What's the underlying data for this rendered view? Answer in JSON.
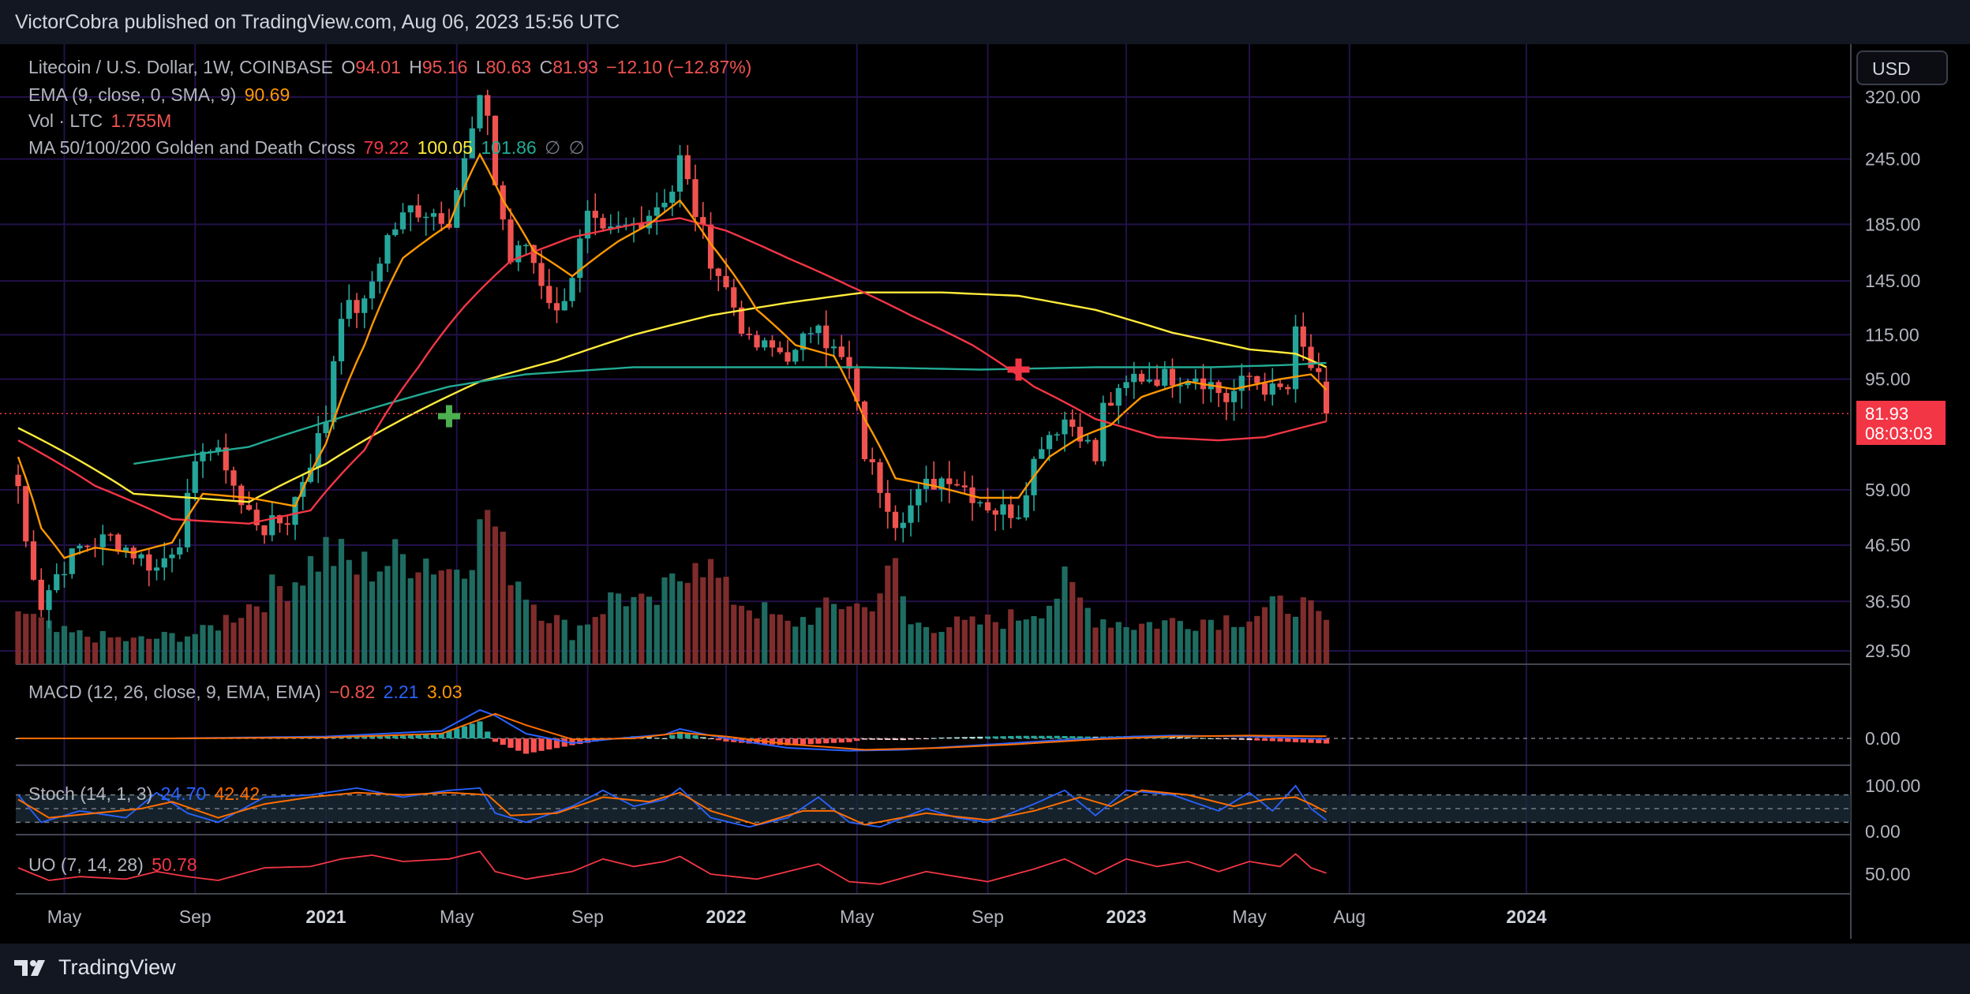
{
  "header": {
    "publisher_line": "VictorCobra published on TradingView.com, Aug 06, 2023 15:56 UTC"
  },
  "footer": {
    "logo_text": "TradingView"
  },
  "currency_button": "USD",
  "colors": {
    "bull": "#26a69a",
    "bear": "#ef5350",
    "ema": "#ff9800",
    "ma50": "#f23645",
    "ma100": "#22ab94",
    "ma200": "#ffeb3b",
    "macd": "#2962ff",
    "signal": "#ff6d00",
    "stoch_k": "#2962ff",
    "stoch_d": "#ff6d00",
    "uo": "#f23645",
    "grid": "#22114a",
    "axis_text": "#b2b5be"
  },
  "legend": {
    "main": {
      "title": "Litecoin / U.S. Dollar, 1W, COINBASE",
      "o_label": "O",
      "o_val": "94.01",
      "h_label": "H",
      "h_val": "95.16",
      "l_label": "L",
      "l_val": "80.63",
      "c_label": "C",
      "c_val": "81.93",
      "change": "−12.10 (−12.87%)"
    },
    "ema": {
      "title": "EMA (9, close, 0, SMA, 9)",
      "value": "90.69"
    },
    "vol": {
      "title": "Vol · LTC",
      "value": "1.755M"
    },
    "ma": {
      "title": "MA 50/100/200 Golden and Death Cross",
      "v1": "79.22",
      "v2": "100.05",
      "v3": "101.86",
      "na1": "∅",
      "na2": "∅"
    },
    "macd": {
      "title": "MACD (12, 26, close, 9, EMA, EMA)",
      "v1": "−0.82",
      "v2": "2.21",
      "v3": "3.03"
    },
    "stoch": {
      "title": "Stoch (14, 1, 3)",
      "v1": "24.70",
      "v2": "42.42"
    },
    "uo": {
      "title": "UO (7, 14, 28)",
      "v1": "50.78"
    }
  },
  "price_tag": {
    "price": "81.93",
    "countdown": "08:03:03"
  },
  "chart_data": {
    "type": "candlestick",
    "symbol": "LTCUSD",
    "interval": "1W",
    "price_axis": {
      "scale": "log",
      "ticks": [
        "320.00",
        "245.00",
        "185.00",
        "145.00",
        "115.00",
        "95.00",
        "59.00",
        "46.50",
        "36.50",
        "29.50"
      ],
      "tick_values": [
        320,
        245,
        185,
        145,
        115,
        95,
        59,
        46.5,
        36.5,
        29.5
      ]
    },
    "macd_axis_ticks": [
      "0.00"
    ],
    "stoch_axis_ticks": [
      "100.00",
      "0.00"
    ],
    "uo_axis_ticks": [
      "50.00"
    ],
    "time_axis": {
      "labels": [
        "May",
        "Sep",
        "2021",
        "May",
        "Sep",
        "2022",
        "May",
        "Sep",
        "2023",
        "May",
        "Aug",
        "2024"
      ],
      "bold": [
        false,
        false,
        true,
        false,
        false,
        true,
        false,
        false,
        true,
        false,
        false,
        true
      ],
      "weeks_from_first_bar": [
        6,
        23,
        40,
        57,
        74,
        92,
        109,
        126,
        144,
        160,
        173,
        196
      ]
    },
    "last_close": 81.93,
    "markers": [
      {
        "type": "golden-cross",
        "week": 56,
        "price": 81
      },
      {
        "type": "death-cross",
        "week": 130,
        "price": 99
      }
    ],
    "close_anchors": [
      [
        0,
        60
      ],
      [
        1,
        47
      ],
      [
        3,
        36
      ],
      [
        5,
        41
      ],
      [
        8,
        46
      ],
      [
        12,
        48
      ],
      [
        15,
        45
      ],
      [
        18,
        42
      ],
      [
        21,
        48
      ],
      [
        24,
        72
      ],
      [
        27,
        66
      ],
      [
        29,
        55
      ],
      [
        32,
        50
      ],
      [
        35,
        52
      ],
      [
        38,
        67
      ],
      [
        40,
        80
      ],
      [
        42,
        128
      ],
      [
        45,
        130
      ],
      [
        48,
        175
      ],
      [
        51,
        198
      ],
      [
        54,
        195
      ],
      [
        56,
        190
      ],
      [
        58,
        242
      ],
      [
        60,
        310
      ],
      [
        61,
        300
      ],
      [
        62,
        220
      ],
      [
        64,
        158
      ],
      [
        66,
        170
      ],
      [
        68,
        145
      ],
      [
        70,
        125
      ],
      [
        72,
        150
      ],
      [
        74,
        190
      ],
      [
        76,
        175
      ],
      [
        78,
        180
      ],
      [
        80,
        185
      ],
      [
        82,
        195
      ],
      [
        85,
        215
      ],
      [
        86,
        245
      ],
      [
        88,
        195
      ],
      [
        90,
        160
      ],
      [
        93,
        130
      ],
      [
        95,
        110
      ],
      [
        98,
        108
      ],
      [
        101,
        105
      ],
      [
        104,
        125
      ],
      [
        105,
        112
      ],
      [
        108,
        98
      ],
      [
        110,
        69
      ],
      [
        112,
        60
      ],
      [
        114,
        52
      ],
      [
        116,
        55
      ],
      [
        118,
        60
      ],
      [
        121,
        63
      ],
      [
        124,
        58
      ],
      [
        127,
        54
      ],
      [
        130,
        54
      ],
      [
        133,
        73
      ],
      [
        136,
        80
      ],
      [
        138,
        76
      ],
      [
        140,
        67
      ],
      [
        141,
        84
      ],
      [
        143,
        88
      ],
      [
        145,
        96
      ],
      [
        147,
        96
      ],
      [
        150,
        96
      ],
      [
        153,
        97
      ],
      [
        155,
        93
      ],
      [
        157,
        87
      ],
      [
        160,
        96
      ],
      [
        163,
        90
      ],
      [
        165,
        91
      ],
      [
        166,
        115
      ],
      [
        168,
        100
      ],
      [
        169,
        94
      ],
      [
        170,
        82
      ]
    ],
    "ema_anchors": [
      [
        0,
        68
      ],
      [
        3,
        50
      ],
      [
        6,
        44
      ],
      [
        10,
        46
      ],
      [
        15,
        45
      ],
      [
        20,
        47
      ],
      [
        24,
        58
      ],
      [
        30,
        57
      ],
      [
        36,
        55
      ],
      [
        40,
        72
      ],
      [
        45,
        110
      ],
      [
        50,
        160
      ],
      [
        56,
        185
      ],
      [
        60,
        250
      ],
      [
        63,
        205
      ],
      [
        67,
        165
      ],
      [
        72,
        148
      ],
      [
        78,
        172
      ],
      [
        82,
        185
      ],
      [
        86,
        205
      ],
      [
        90,
        170
      ],
      [
        96,
        128
      ],
      [
        101,
        110
      ],
      [
        106,
        105
      ],
      [
        110,
        80
      ],
      [
        114,
        62
      ],
      [
        119,
        60
      ],
      [
        125,
        57
      ],
      [
        130,
        57
      ],
      [
        134,
        68
      ],
      [
        138,
        74
      ],
      [
        142,
        78
      ],
      [
        146,
        88
      ],
      [
        152,
        94
      ],
      [
        158,
        91
      ],
      [
        164,
        95
      ],
      [
        168,
        97
      ],
      [
        170,
        90.69
      ]
    ],
    "ma50_anchors": [
      [
        0,
        73
      ],
      [
        10,
        60
      ],
      [
        20,
        52
      ],
      [
        30,
        51
      ],
      [
        38,
        54
      ],
      [
        45,
        70
      ],
      [
        52,
        100
      ],
      [
        58,
        130
      ],
      [
        64,
        158
      ],
      [
        72,
        175
      ],
      [
        80,
        185
      ],
      [
        86,
        190
      ],
      [
        92,
        180
      ],
      [
        100,
        160
      ],
      [
        108,
        142
      ],
      [
        116,
        125
      ],
      [
        124,
        110
      ],
      [
        132,
        92
      ],
      [
        140,
        80
      ],
      [
        148,
        74
      ],
      [
        156,
        73
      ],
      [
        162,
        74
      ],
      [
        170,
        79.22
      ]
    ],
    "ma100_anchors": [
      [
        15,
        66
      ],
      [
        30,
        71
      ],
      [
        45,
        83
      ],
      [
        56,
        92
      ],
      [
        66,
        97
      ],
      [
        80,
        100
      ],
      [
        95,
        100
      ],
      [
        110,
        100
      ],
      [
        125,
        99
      ],
      [
        140,
        100
      ],
      [
        155,
        100
      ],
      [
        165,
        101
      ],
      [
        170,
        101.86
      ]
    ],
    "ma200_anchors": [
      [
        0,
        77
      ],
      [
        15,
        58
      ],
      [
        30,
        56
      ],
      [
        40,
        66
      ],
      [
        50,
        80
      ],
      [
        60,
        94
      ],
      [
        70,
        103
      ],
      [
        80,
        115
      ],
      [
        90,
        125
      ],
      [
        100,
        132
      ],
      [
        110,
        138
      ],
      [
        120,
        138
      ],
      [
        130,
        136
      ],
      [
        140,
        128
      ],
      [
        150,
        116
      ],
      [
        160,
        108
      ],
      [
        166,
        106
      ],
      [
        170,
        100.05
      ]
    ],
    "volume_anchors": [
      [
        0,
        0.35
      ],
      [
        5,
        0.2
      ],
      [
        15,
        0.15
      ],
      [
        24,
        0.2
      ],
      [
        36,
        0.55
      ],
      [
        40,
        0.72
      ],
      [
        44,
        0.6
      ],
      [
        48,
        0.65
      ],
      [
        52,
        0.7
      ],
      [
        56,
        0.6
      ],
      [
        60,
        0.82
      ],
      [
        61,
        1.0
      ],
      [
        63,
        0.7
      ],
      [
        67,
        0.4
      ],
      [
        72,
        0.2
      ],
      [
        78,
        0.45
      ],
      [
        82,
        0.35
      ],
      [
        86,
        0.55
      ],
      [
        88,
        0.75
      ],
      [
        92,
        0.45
      ],
      [
        96,
        0.35
      ],
      [
        100,
        0.25
      ],
      [
        108,
        0.4
      ],
      [
        110,
        0.35
      ],
      [
        114,
        0.6
      ],
      [
        116,
        0.25
      ],
      [
        124,
        0.25
      ],
      [
        130,
        0.3
      ],
      [
        134,
        0.4
      ],
      [
        136,
        0.5
      ],
      [
        140,
        0.3
      ],
      [
        145,
        0.25
      ],
      [
        152,
        0.28
      ],
      [
        160,
        0.3
      ],
      [
        166,
        0.4
      ],
      [
        170,
        0.25
      ]
    ],
    "macd": {
      "value": -0.82,
      "signal": 2.21,
      "histogram_label": 3.03,
      "macd_anchors": [
        [
          0,
          0
        ],
        [
          20,
          0
        ],
        [
          40,
          2
        ],
        [
          55,
          8
        ],
        [
          60,
          30
        ],
        [
          62,
          24
        ],
        [
          66,
          5
        ],
        [
          72,
          -5
        ],
        [
          78,
          0
        ],
        [
          84,
          4
        ],
        [
          86,
          10
        ],
        [
          90,
          3
        ],
        [
          95,
          -4
        ],
        [
          100,
          -10
        ],
        [
          108,
          -13
        ],
        [
          115,
          -12
        ],
        [
          125,
          -7
        ],
        [
          135,
          -2
        ],
        [
          145,
          2
        ],
        [
          150,
          3
        ],
        [
          160,
          2
        ],
        [
          170,
          -0.82
        ]
      ],
      "signal_anchors": [
        [
          0,
          0
        ],
        [
          20,
          0
        ],
        [
          40,
          1
        ],
        [
          55,
          5
        ],
        [
          62,
          26
        ],
        [
          66,
          14
        ],
        [
          72,
          -1
        ],
        [
          80,
          0
        ],
        [
          86,
          6
        ],
        [
          92,
          2
        ],
        [
          100,
          -6
        ],
        [
          110,
          -12
        ],
        [
          120,
          -10
        ],
        [
          130,
          -6
        ],
        [
          140,
          -1
        ],
        [
          150,
          2
        ],
        [
          160,
          3
        ],
        [
          170,
          2.21
        ]
      ]
    },
    "stoch": {
      "k": 24.7,
      "d": 42.42,
      "upper_band": 80,
      "lower_band": 20,
      "k_anchors": [
        [
          0,
          80
        ],
        [
          3,
          20
        ],
        [
          8,
          45
        ],
        [
          14,
          30
        ],
        [
          18,
          85
        ],
        [
          22,
          40
        ],
        [
          26,
          20
        ],
        [
          32,
          75
        ],
        [
          38,
          80
        ],
        [
          44,
          95
        ],
        [
          50,
          75
        ],
        [
          56,
          90
        ],
        [
          60,
          95
        ],
        [
          62,
          40
        ],
        [
          66,
          20
        ],
        [
          72,
          55
        ],
        [
          76,
          90
        ],
        [
          80,
          55
        ],
        [
          84,
          70
        ],
        [
          86,
          95
        ],
        [
          90,
          30
        ],
        [
          95,
          10
        ],
        [
          100,
          30
        ],
        [
          104,
          75
        ],
        [
          108,
          20
        ],
        [
          112,
          10
        ],
        [
          118,
          50
        ],
        [
          122,
          30
        ],
        [
          126,
          20
        ],
        [
          132,
          60
        ],
        [
          136,
          90
        ],
        [
          140,
          35
        ],
        [
          144,
          90
        ],
        [
          150,
          80
        ],
        [
          156,
          45
        ],
        [
          160,
          85
        ],
        [
          163,
          45
        ],
        [
          166,
          100
        ],
        [
          168,
          50
        ],
        [
          170,
          24.7
        ]
      ],
      "d_anchors": [
        [
          0,
          70
        ],
        [
          4,
          30
        ],
        [
          10,
          40
        ],
        [
          16,
          50
        ],
        [
          20,
          65
        ],
        [
          26,
          30
        ],
        [
          32,
          60
        ],
        [
          38,
          75
        ],
        [
          44,
          85
        ],
        [
          50,
          80
        ],
        [
          56,
          85
        ],
        [
          61,
          80
        ],
        [
          64,
          35
        ],
        [
          70,
          40
        ],
        [
          76,
          75
        ],
        [
          82,
          65
        ],
        [
          86,
          85
        ],
        [
          90,
          45
        ],
        [
          96,
          15
        ],
        [
          102,
          45
        ],
        [
          106,
          45
        ],
        [
          110,
          15
        ],
        [
          118,
          40
        ],
        [
          126,
          25
        ],
        [
          132,
          45
        ],
        [
          138,
          75
        ],
        [
          142,
          55
        ],
        [
          146,
          90
        ],
        [
          152,
          80
        ],
        [
          158,
          55
        ],
        [
          162,
          70
        ],
        [
          166,
          75
        ],
        [
          168,
          60
        ],
        [
          170,
          42.42
        ]
      ]
    },
    "uo": {
      "value": 50.78,
      "anchors": [
        [
          0,
          55
        ],
        [
          4,
          45
        ],
        [
          8,
          48
        ],
        [
          14,
          46
        ],
        [
          18,
          52
        ],
        [
          22,
          48
        ],
        [
          26,
          45
        ],
        [
          32,
          55
        ],
        [
          38,
          56
        ],
        [
          42,
          62
        ],
        [
          46,
          65
        ],
        [
          50,
          60
        ],
        [
          56,
          62
        ],
        [
          60,
          68
        ],
        [
          62,
          52
        ],
        [
          66,
          46
        ],
        [
          72,
          52
        ],
        [
          76,
          62
        ],
        [
          80,
          56
        ],
        [
          84,
          60
        ],
        [
          86,
          64
        ],
        [
          90,
          50
        ],
        [
          96,
          46
        ],
        [
          100,
          52
        ],
        [
          104,
          58
        ],
        [
          108,
          44
        ],
        [
          112,
          42
        ],
        [
          118,
          52
        ],
        [
          122,
          48
        ],
        [
          126,
          44
        ],
        [
          132,
          54
        ],
        [
          136,
          62
        ],
        [
          140,
          50
        ],
        [
          144,
          62
        ],
        [
          148,
          56
        ],
        [
          152,
          60
        ],
        [
          156,
          52
        ],
        [
          160,
          60
        ],
        [
          164,
          56
        ],
        [
          166,
          66
        ],
        [
          168,
          55
        ],
        [
          170,
          50.78
        ]
      ]
    }
  }
}
